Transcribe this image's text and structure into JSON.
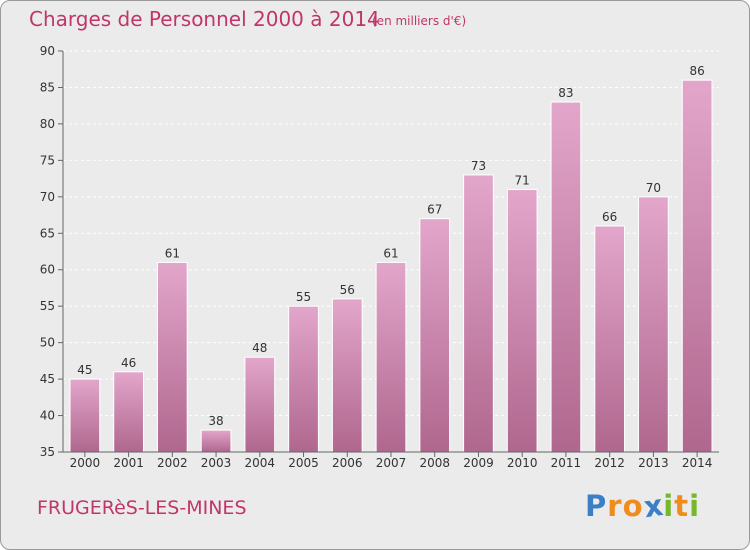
{
  "chart_data": {
    "type": "bar",
    "title": "Charges de Personnel 2000 à 2014",
    "subtitle": "(en milliers d'€)",
    "categories": [
      "2000",
      "2001",
      "2002",
      "2003",
      "2004",
      "2005",
      "2006",
      "2007",
      "2008",
      "2009",
      "2010",
      "2011",
      "2012",
      "2013",
      "2014"
    ],
    "values": [
      45,
      46,
      61,
      38,
      48,
      55,
      56,
      61,
      67,
      73,
      71,
      83,
      66,
      70,
      86
    ],
    "ylim": [
      35,
      90
    ],
    "yticks": [
      35,
      40,
      45,
      50,
      55,
      60,
      65,
      70,
      75,
      80,
      85,
      90
    ],
    "grid": true,
    "bar_color_top": "#e3a6cb",
    "bar_color_bottom": "#b0678e"
  },
  "footer": {
    "commune": "FRUGERèS-LES-MINES"
  },
  "logo": {
    "text": "Proxiti",
    "letters": [
      {
        "ch": "P",
        "color": "#3b7fc4"
      },
      {
        "ch": "r",
        "color": "#f08c1e"
      },
      {
        "ch": "o",
        "color": "#f08c1e"
      },
      {
        "ch": "x",
        "color": "#3b7fc4"
      },
      {
        "ch": "i",
        "color": "#76b82a"
      },
      {
        "ch": "t",
        "color": "#f08c1e"
      },
      {
        "ch": "i",
        "color": "#76b82a"
      }
    ]
  }
}
